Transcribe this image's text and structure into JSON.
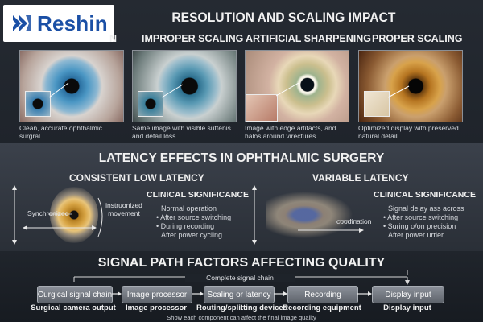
{
  "logo": {
    "brand": "Reshin"
  },
  "top": {
    "title": "RESOLUTION AND SCALING IMPACT",
    "columns": [
      {
        "heading": "N",
        "caption": "Clean, accurate ophthalmic surgral."
      },
      {
        "heading": "IMPROPER SCALING",
        "caption": "Same image with visible suftenis and detail loss."
      },
      {
        "heading": "ARTIFICIAL SHARPENING",
        "caption": "Image with edge artifacts, and halos around virectures."
      },
      {
        "heading": "PROPER SCALING",
        "caption": "Optimized display with preserved natural detail."
      }
    ]
  },
  "latency": {
    "title": "LATENCY EFFECTS IN OPHTHALMIC SURGERY",
    "left": {
      "heading": "CONSISTENT LOW LATENCY",
      "label_sync": "Synchronized",
      "label_movement": "instruonized movement",
      "clinical_heading": "CLINICAL SIGNIFICANCE",
      "bullets": [
        "Normal operation",
        "After source switching",
        "During recording",
        "After power cycling"
      ]
    },
    "right": {
      "heading": "VARIABLE LATENCY",
      "label_coord": "coodination",
      "clinical_heading": "CLINICAL SIGNIFICANCE",
      "bullets": [
        "Signal delay ass across",
        "After source switching",
        "Suring o/on precision",
        "After power urtler"
      ]
    }
  },
  "signal": {
    "title": "SIGNAL PATH FACTORS AFFECTING QUALITY",
    "chain_label": "Complete signal chain",
    "boxes": [
      "Curgical signal chain",
      "Image processor",
      "Scaling or latency",
      "Recording",
      "Display input"
    ],
    "labels": [
      "Surgical camera output",
      "Image processor",
      "Routing/splitting devices",
      "Recording equipment",
      "Display input"
    ],
    "footer": "Show each component can affect the final image quality"
  }
}
